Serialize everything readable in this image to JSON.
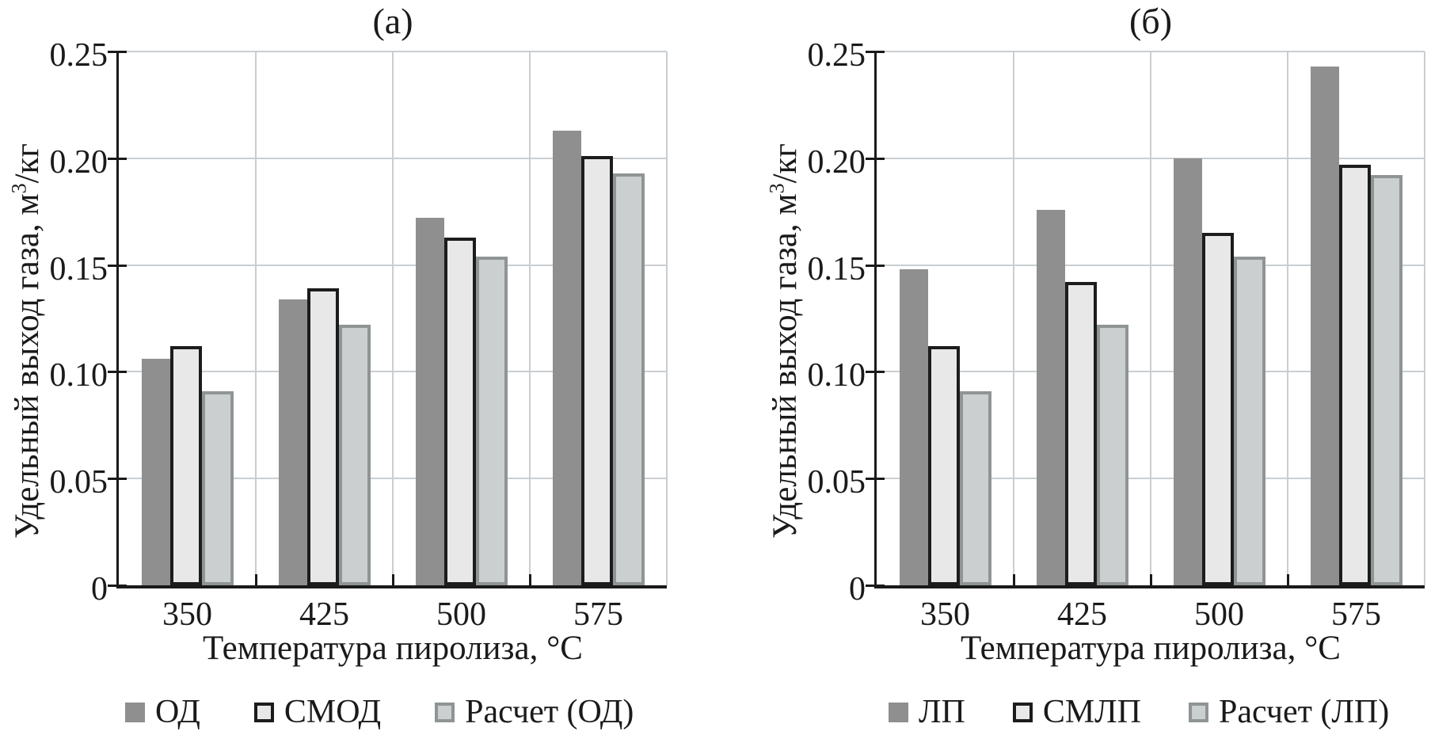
{
  "figure": {
    "charts": [
      {
        "title": "(а)",
        "ylabel": {
          "pre": "Удельный выход газа, м",
          "sup": "3",
          "post": "/кг"
        },
        "xlabel": "Температура пиролиза, °С",
        "chart_data": {
          "type": "bar",
          "categories": [
            "350",
            "425",
            "500",
            "575"
          ],
          "series": [
            {
              "name": "ОД",
              "style": "solid-gray",
              "values": [
                0.106,
                0.134,
                0.172,
                0.213
              ]
            },
            {
              "name": "СМОД",
              "style": "outlined-black",
              "values": [
                0.112,
                0.139,
                0.163,
                0.201
              ]
            },
            {
              "name": "Расчет (ОД)",
              "style": "outlined-gray",
              "values": [
                0.091,
                0.122,
                0.154,
                0.193
              ]
            }
          ],
          "ylim": [
            0,
            0.25
          ],
          "ytick_labels": [
            "0",
            "0.05",
            "0.10",
            "0.15",
            "0.20",
            "0.25"
          ],
          "grid": true,
          "legend_position": "bottom"
        }
      },
      {
        "title": "(б)",
        "ylabel": {
          "pre": "Удельный выход газа, м",
          "sup": "3",
          "post": "/кг"
        },
        "xlabel": "Температура пиролиза, °С",
        "chart_data": {
          "type": "bar",
          "categories": [
            "350",
            "425",
            "500",
            "575"
          ],
          "series": [
            {
              "name": "ЛП",
              "style": "solid-gray",
              "values": [
                0.148,
                0.176,
                0.2,
                0.243
              ]
            },
            {
              "name": "СМЛП",
              "style": "outlined-black",
              "values": [
                0.112,
                0.142,
                0.165,
                0.197
              ]
            },
            {
              "name": "Расчет (ЛП)",
              "style": "outlined-gray",
              "values": [
                0.091,
                0.122,
                0.154,
                0.192
              ]
            }
          ],
          "ylim": [
            0,
            0.25
          ],
          "ytick_labels": [
            "0",
            "0.05",
            "0.10",
            "0.15",
            "0.20",
            "0.25"
          ],
          "grid": true,
          "legend_position": "bottom"
        }
      }
    ],
    "series_styles": {
      "solid-gray": {
        "fill": "#8f8f8f",
        "border_color": "none",
        "border_width": 0
      },
      "outlined-black": {
        "fill": "#e8e8e8",
        "border_color": "#1c1c1c",
        "border_width": 4
      },
      "outlined-gray": {
        "fill": "#cccfd0",
        "border_color": "#8f9495",
        "border_width": 4
      }
    },
    "colors": {
      "grid": "#c9ced2",
      "axis": "#1a1a1a",
      "text": "#1a1a1a",
      "background": "#ffffff"
    }
  }
}
